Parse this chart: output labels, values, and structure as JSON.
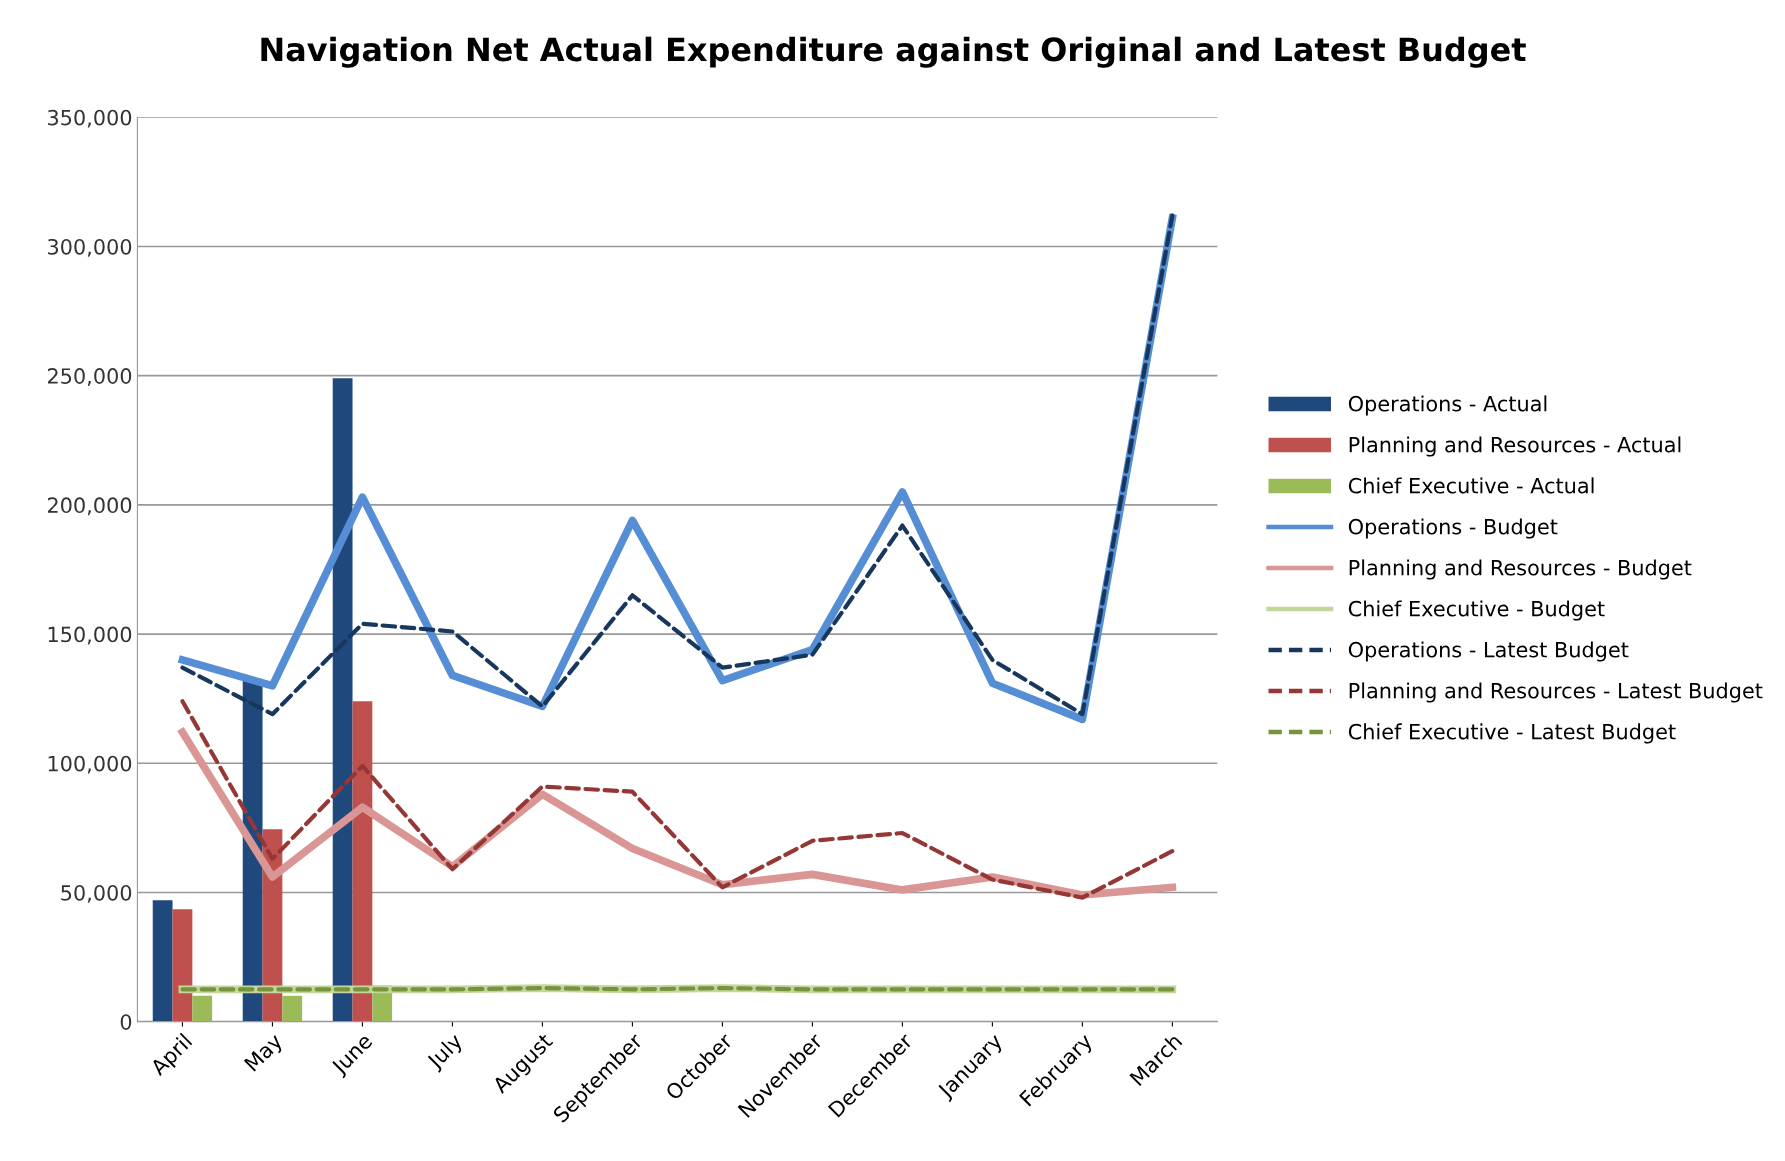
{
  "chart_data": {
    "type": "bar",
    "title": "Navigation Net Actual Expenditure against Original and Latest Budget",
    "categories": [
      "April",
      "May",
      "June",
      "July",
      "August",
      "September",
      "October",
      "November",
      "December",
      "January",
      "February",
      "March"
    ],
    "series": [
      {
        "name": "Operations - Actual",
        "color": "#1f497d",
        "values": [
          47000,
          132000,
          249000,
          null,
          null,
          null,
          null,
          null,
          null,
          null,
          null,
          null
        ]
      },
      {
        "name": "Planning and Resources - Actual",
        "color": "#c0504d",
        "values": [
          43500,
          74500,
          124000,
          null,
          null,
          null,
          null,
          null,
          null,
          null,
          null,
          null
        ]
      },
      {
        "name": "Chief Executive - Actual",
        "color": "#9bbb59",
        "values": [
          10000,
          10000,
          14000,
          null,
          null,
          null,
          null,
          null,
          null,
          null,
          null,
          null
        ]
      },
      {
        "name": "Operations - Budget",
        "type": "line",
        "line_style": "solid",
        "color": "#558ed5",
        "values": [
          140000,
          130000,
          203000,
          134000,
          122000,
          194000,
          132000,
          144000,
          205000,
          131000,
          117000,
          311000
        ]
      },
      {
        "name": "Planning and Resources - Budget",
        "type": "line",
        "line_style": "solid",
        "color": "#d99694",
        "values": [
          112000,
          56000,
          83000,
          60000,
          88000,
          67000,
          53000,
          57000,
          51000,
          56000,
          49000,
          52000
        ]
      },
      {
        "name": "Chief Executive - Budget",
        "type": "line",
        "line_style": "solid",
        "color": "#c3d69b",
        "values": [
          12500,
          12500,
          12500,
          12500,
          13000,
          12500,
          13000,
          12500,
          12500,
          12500,
          12500,
          12500
        ]
      },
      {
        "name": "Operations - Latest Budget",
        "type": "line",
        "line_style": "dashed",
        "color": "#17375e",
        "values": [
          137000,
          119000,
          154000,
          151000,
          122000,
          165000,
          137000,
          142000,
          192000,
          140000,
          119000,
          312000
        ]
      },
      {
        "name": "Planning and Resources - Latest Budget",
        "type": "line",
        "line_style": "dashed",
        "color": "#953735",
        "values": [
          124000,
          63000,
          99000,
          59000,
          91000,
          89000,
          52000,
          70000,
          73000,
          55000,
          48000,
          66000
        ]
      },
      {
        "name": "Chief Executive - Latest Budget",
        "type": "line",
        "line_style": "dashed",
        "color": "#77933c",
        "values": [
          12500,
          12500,
          12500,
          12500,
          13000,
          12500,
          13000,
          12500,
          12500,
          12500,
          12500,
          12500
        ]
      }
    ],
    "ylim": [
      0,
      350000
    ],
    "yticks": [
      {
        "value": 0,
        "label": "0"
      },
      {
        "value": 50000,
        "label": "50,000"
      },
      {
        "value": 100000,
        "label": "100,000"
      },
      {
        "value": 150000,
        "label": "150,000"
      },
      {
        "value": 200000,
        "label": "200,000"
      },
      {
        "value": 250000,
        "label": "250,000"
      },
      {
        "value": 300000,
        "label": "300,000"
      },
      {
        "value": 350000,
        "label": "350,000"
      }
    ],
    "grid": "y",
    "legend": "right"
  }
}
